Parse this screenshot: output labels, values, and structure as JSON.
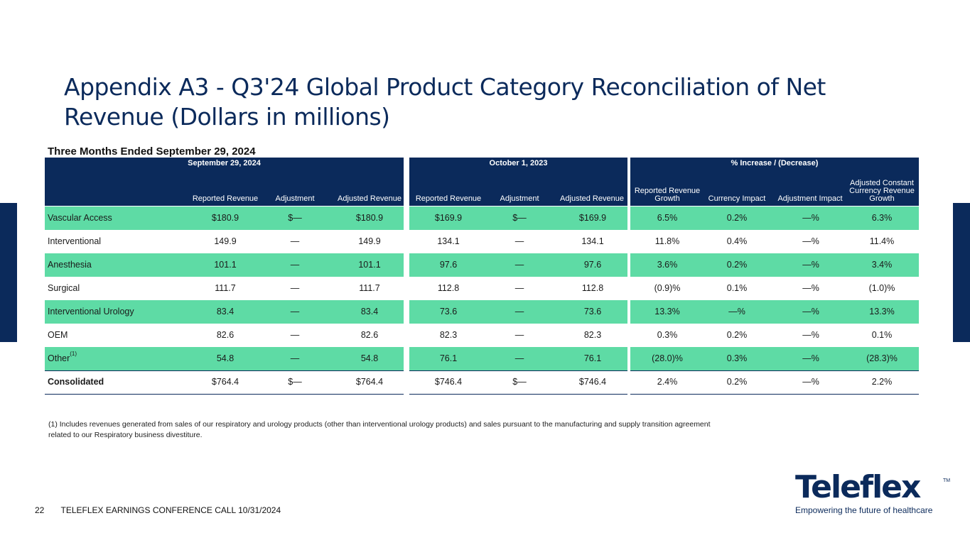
{
  "title": "Appendix A3 - Q3'24 Global Product Category Reconciliation of Net Revenue (Dollars in millions)",
  "period": "Three Months Ended September 29, 2024",
  "groups": [
    "September 29, 2024",
    "October 1, 2023",
    "% Increase / (Decrease)"
  ],
  "columns": [
    "Reported Revenue",
    "Adjustment",
    "Adjusted Revenue",
    "Reported Revenue",
    "Adjustment",
    "Adjusted Revenue",
    "Reported Revenue Growth",
    "Currency Impact",
    "Adjustment Impact",
    "Adjusted Constant Currency Revenue Growth"
  ],
  "rows": [
    {
      "label": "Vascular Access",
      "values": [
        "$180.9",
        "$—",
        "$180.9",
        "$169.9",
        "$—",
        "$169.9",
        "6.5%",
        "0.2%",
        "—%",
        "6.3%"
      ]
    },
    {
      "label": "Interventional",
      "values": [
        "149.9",
        "—",
        "149.9",
        "134.1",
        "—",
        "134.1",
        "11.8%",
        "0.4%",
        "—%",
        "11.4%"
      ]
    },
    {
      "label": "Anesthesia",
      "values": [
        "101.1",
        "—",
        "101.1",
        "97.6",
        "—",
        "97.6",
        "3.6%",
        "0.2%",
        "—%",
        "3.4%"
      ]
    },
    {
      "label": "Surgical",
      "values": [
        "111.7",
        "—",
        "111.7",
        "112.8",
        "—",
        "112.8",
        "(0.9)%",
        "0.1%",
        "—%",
        "(1.0)%"
      ]
    },
    {
      "label": "Interventional Urology",
      "values": [
        "83.4",
        "—",
        "83.4",
        "73.6",
        "—",
        "73.6",
        "13.3%",
        "—%",
        "—%",
        "13.3%"
      ]
    },
    {
      "label": "OEM",
      "values": [
        "82.6",
        "—",
        "82.6",
        "82.3",
        "—",
        "82.3",
        "0.3%",
        "0.2%",
        "—%",
        "0.1%"
      ]
    },
    {
      "label": "Other",
      "sup": "(1)",
      "values": [
        "54.8",
        "—",
        "54.8",
        "76.1",
        "—",
        "76.1",
        "(28.0)%",
        "0.3%",
        "—%",
        "(28.3)%"
      ]
    },
    {
      "label": "Consolidated",
      "values": [
        "$764.4",
        "$—",
        "$764.4",
        "$746.4",
        "$—",
        "$746.4",
        "2.4%",
        "0.2%",
        "—%",
        "2.2%"
      ]
    }
  ],
  "footnote": "(1) Includes revenues generated from sales of our respiratory and urology products (other than interventional urology products) and sales pursuant to the manufacturing and supply transition agreement related to our Respiratory business divestiture.",
  "footer": {
    "page": "22",
    "text": "TELEFLEX EARNINGS CONFERENCE CALL 10/31/2024"
  },
  "logo": {
    "name": "Teleflex",
    "tm": "TM",
    "tagline": "Empowering the future of healthcare"
  },
  "colors": {
    "navy": "#0b2a5b",
    "green": "#5edba5"
  }
}
